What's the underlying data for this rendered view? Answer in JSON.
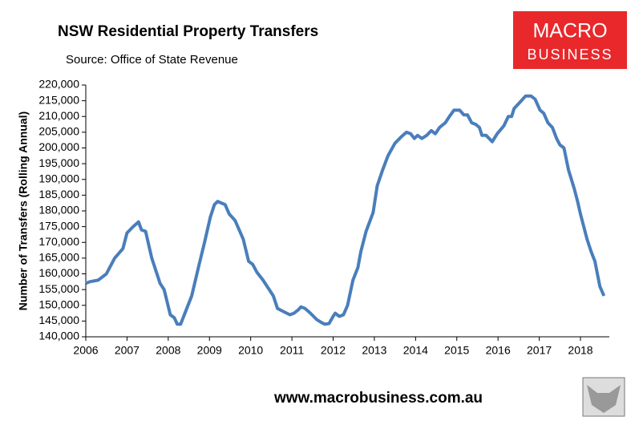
{
  "chart_data": {
    "type": "line",
    "title": "NSW Residential Property Transfers",
    "subtitle": "Source: Office of State Revenue",
    "y_label": "Number of Transfers (Rolling Annual)",
    "logo": [
      "MACRO",
      "BUSINESS"
    ],
    "footer": "www.macrobusiness.com.au",
    "xlim": [
      2006,
      2018.7
    ],
    "xticks": [
      2006,
      2007,
      2008,
      2009,
      2010,
      2011,
      2012,
      2013,
      2014,
      2015,
      2016,
      2017,
      2018
    ],
    "ylim": [
      140000,
      220000
    ],
    "yticks": [
      {
        "value": 140000,
        "label": "140,000"
      },
      {
        "value": 145000,
        "label": "145,000"
      },
      {
        "value": 150000,
        "label": "150,000"
      },
      {
        "value": 155000,
        "label": "155,000"
      },
      {
        "value": 160000,
        "label": "160,000"
      },
      {
        "value": 165000,
        "label": "165,000"
      },
      {
        "value": 170000,
        "label": "170,000"
      },
      {
        "value": 175000,
        "label": "175,000"
      },
      {
        "value": 180000,
        "label": "180,000"
      },
      {
        "value": 185000,
        "label": "185,000"
      },
      {
        "value": 190000,
        "label": "190,000"
      },
      {
        "value": 195000,
        "label": "195,000"
      },
      {
        "value": 200000,
        "label": "200,000"
      },
      {
        "value": 205000,
        "label": "205,000"
      },
      {
        "value": 210000,
        "label": "210,000"
      },
      {
        "value": 215000,
        "label": "215,000"
      },
      {
        "value": 220000,
        "label": "220,000"
      }
    ],
    "grid": false,
    "series": [
      {
        "color": "#4a7ebb",
        "x": [
          2006.0,
          2006.1,
          2006.3,
          2006.5,
          2006.7,
          2006.9,
          2007.0,
          2007.15,
          2007.28,
          2007.35,
          2007.45,
          2007.6,
          2007.8,
          2007.9,
          2008.05,
          2008.15,
          2008.22,
          2008.3,
          2008.42,
          2008.57,
          2008.75,
          2008.88,
          2009.02,
          2009.12,
          2009.2,
          2009.38,
          2009.48,
          2009.62,
          2009.72,
          2009.82,
          2009.95,
          2010.05,
          2010.15,
          2010.3,
          2010.45,
          2010.55,
          2010.65,
          2010.8,
          2010.95,
          2011.05,
          2011.15,
          2011.22,
          2011.32,
          2011.45,
          2011.6,
          2011.72,
          2011.8,
          2011.9,
          2012.0,
          2012.05,
          2012.15,
          2012.25,
          2012.35,
          2012.48,
          2012.6,
          2012.67,
          2012.8,
          2012.97,
          2013.07,
          2013.2,
          2013.33,
          2013.5,
          2013.65,
          2013.78,
          2013.88,
          2013.97,
          2014.05,
          2014.15,
          2014.27,
          2014.38,
          2014.48,
          2014.58,
          2014.72,
          2014.82,
          2014.93,
          2015.07,
          2015.17,
          2015.26,
          2015.36,
          2015.46,
          2015.55,
          2015.61,
          2015.71,
          2015.86,
          2015.98,
          2016.14,
          2016.25,
          2016.33,
          2016.39,
          2016.53,
          2016.67,
          2016.8,
          2016.9,
          2017.02,
          2017.11,
          2017.21,
          2017.32,
          2017.42,
          2017.5,
          2017.6,
          2017.71,
          2017.85,
          2017.93,
          2018.0,
          2018.16,
          2018.26,
          2018.35,
          2018.47,
          2018.57
        ],
        "values": [
          157000,
          157500,
          158000,
          160000,
          165000,
          168000,
          173000,
          175000,
          176500,
          174000,
          173500,
          165000,
          157000,
          155000,
          147000,
          146000,
          144000,
          144000,
          148000,
          153000,
          163000,
          170000,
          178000,
          182000,
          183000,
          182000,
          179000,
          177000,
          174000,
          171000,
          164000,
          163000,
          160500,
          158000,
          155000,
          153000,
          149000,
          148000,
          147000,
          147500,
          148500,
          149500,
          149000,
          147500,
          145500,
          144500,
          144000,
          144200,
          146500,
          147500,
          146500,
          147000,
          150000,
          158000,
          162000,
          167000,
          173500,
          179500,
          188000,
          193000,
          197500,
          201500,
          203500,
          205000,
          204500,
          203000,
          204000,
          203000,
          204000,
          205500,
          204500,
          206500,
          208000,
          210000,
          212000,
          212000,
          210500,
          210500,
          208000,
          207500,
          206500,
          204000,
          204000,
          202000,
          204500,
          207000,
          210000,
          210000,
          212500,
          214500,
          216500,
          216500,
          215500,
          212000,
          211000,
          208000,
          206500,
          203000,
          201000,
          200000,
          193000,
          187000,
          183000,
          179000,
          171000,
          167000,
          164000,
          156000,
          153000
        ]
      }
    ]
  }
}
